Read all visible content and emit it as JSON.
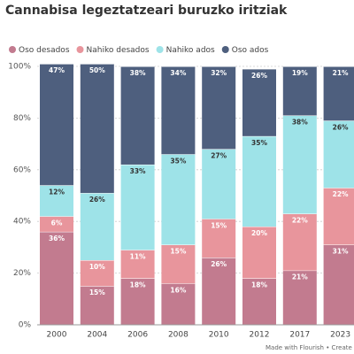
{
  "chart_data": {
    "type": "stacked_bar",
    "title": "Cannabisa legeztatzeari buruzko iritziak",
    "footer": "Made with Flourish • Create a cha",
    "categories": [
      "2000",
      "2004",
      "2006",
      "2008",
      "2010",
      "2012",
      "2017",
      "2023"
    ],
    "series": [
      {
        "name": "Oso desados",
        "color": "#c27b8f",
        "values": [
          36,
          15,
          18,
          16,
          26,
          18,
          21,
          31
        ],
        "value_labels": [
          "36%",
          "15%",
          "18%",
          "16%",
          "26%",
          "18%",
          "21%",
          "31%"
        ]
      },
      {
        "name": "Nahiko desados",
        "color": "#e8959c",
        "values": [
          6,
          10,
          11,
          15,
          15,
          20,
          22,
          22
        ],
        "value_labels": [
          "6%",
          "10%",
          "11%",
          "15%",
          "15%",
          "20%",
          "22%",
          "22%"
        ]
      },
      {
        "name": "Nahiko ados",
        "color": "#9ee3e8",
        "values": [
          12,
          26,
          33,
          35,
          27,
          35,
          38,
          26
        ],
        "value_labels": [
          "12%",
          "26%",
          "33%",
          "35%",
          "27%",
          "35%",
          "38%",
          "26%"
        ]
      },
      {
        "name": "Oso ados",
        "color": "#4e5f7e",
        "values": [
          47,
          50,
          38,
          34,
          32,
          26,
          19,
          21
        ],
        "value_labels": [
          "47%",
          "50%",
          "38%",
          "34%",
          "32%",
          "26%",
          "19%",
          "21%"
        ]
      }
    ],
    "ylim": [
      0,
      100
    ],
    "yticks": [
      {
        "value": 0,
        "label": "0%"
      },
      {
        "value": 20,
        "label": "20%"
      },
      {
        "value": 40,
        "label": "40%"
      },
      {
        "value": 60,
        "label": "60%"
      },
      {
        "value": 80,
        "label": "80%"
      },
      {
        "value": 100,
        "label": "100%"
      }
    ],
    "grid": true
  }
}
